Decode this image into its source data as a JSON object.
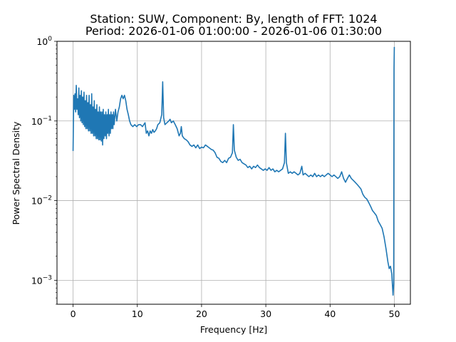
{
  "chart_data": {
    "type": "line",
    "title_lines": [
      "Station: SUW, Component: By, length of FFT: 1024",
      "Period: 2026-01-06 01:00:00 - 2026-01-06 01:30:00"
    ],
    "xlabel": "Frequency [Hz]",
    "ylabel": "Power Spectral Density",
    "xlim": [
      -2.5,
      52.5
    ],
    "ylim": [
      0.0005,
      1
    ],
    "yscale": "log",
    "grid": true,
    "line_color": "#1f77b4",
    "x_ticks": [
      0,
      10,
      20,
      30,
      40,
      50
    ],
    "x_tick_labels": [
      "0",
      "10",
      "20",
      "30",
      "40",
      "50"
    ],
    "y_ticks": [
      0.001,
      0.01,
      0.1,
      1
    ],
    "y_tick_labels": [
      {
        "base": "10",
        "exp": "−3"
      },
      {
        "base": "10",
        "exp": "−2"
      },
      {
        "base": "10",
        "exp": "−1"
      },
      {
        "base": "10",
        "exp": "0"
      }
    ],
    "series": [
      {
        "points": [
          [
            0.0,
            0.042
          ],
          [
            0.05,
            0.09
          ],
          [
            0.1,
            0.21
          ],
          [
            0.2,
            0.14
          ],
          [
            0.3,
            0.22
          ],
          [
            0.4,
            0.13
          ],
          [
            0.5,
            0.28
          ],
          [
            0.6,
            0.14
          ],
          [
            0.7,
            0.19
          ],
          [
            0.8,
            0.12
          ],
          [
            0.9,
            0.26
          ],
          [
            1.0,
            0.11
          ],
          [
            1.1,
            0.21
          ],
          [
            1.2,
            0.1
          ],
          [
            1.3,
            0.24
          ],
          [
            1.4,
            0.095
          ],
          [
            1.5,
            0.2
          ],
          [
            1.6,
            0.09
          ],
          [
            1.7,
            0.23
          ],
          [
            1.8,
            0.085
          ],
          [
            1.9,
            0.18
          ],
          [
            2.0,
            0.08
          ],
          [
            2.1,
            0.21
          ],
          [
            2.2,
            0.08
          ],
          [
            2.3,
            0.17
          ],
          [
            2.4,
            0.075
          ],
          [
            2.5,
            0.21
          ],
          [
            2.6,
            0.075
          ],
          [
            2.7,
            0.16
          ],
          [
            2.8,
            0.07
          ],
          [
            2.9,
            0.22
          ],
          [
            3.0,
            0.07
          ],
          [
            3.1,
            0.15
          ],
          [
            3.2,
            0.065
          ],
          [
            3.3,
            0.18
          ],
          [
            3.4,
            0.065
          ],
          [
            3.5,
            0.14
          ],
          [
            3.6,
            0.06
          ],
          [
            3.7,
            0.16
          ],
          [
            3.8,
            0.06
          ],
          [
            3.9,
            0.13
          ],
          [
            4.0,
            0.058
          ],
          [
            4.1,
            0.15
          ],
          [
            4.2,
            0.058
          ],
          [
            4.3,
            0.13
          ],
          [
            4.4,
            0.056
          ],
          [
            4.5,
            0.13
          ],
          [
            4.6,
            0.05
          ],
          [
            4.7,
            0.14
          ],
          [
            4.8,
            0.06
          ],
          [
            4.9,
            0.12
          ],
          [
            5.0,
            0.065
          ],
          [
            5.1,
            0.13
          ],
          [
            5.2,
            0.06
          ],
          [
            5.3,
            0.12
          ],
          [
            5.4,
            0.07
          ],
          [
            5.5,
            0.14
          ],
          [
            5.6,
            0.065
          ],
          [
            5.7,
            0.12
          ],
          [
            5.8,
            0.07
          ],
          [
            5.9,
            0.13
          ],
          [
            6.0,
            0.08
          ],
          [
            6.1,
            0.12
          ],
          [
            6.2,
            0.08
          ],
          [
            6.3,
            0.13
          ],
          [
            6.4,
            0.09
          ],
          [
            6.6,
            0.14
          ],
          [
            6.8,
            0.1
          ],
          [
            7.0,
            0.13
          ],
          [
            7.2,
            0.15
          ],
          [
            7.4,
            0.19
          ],
          [
            7.6,
            0.21
          ],
          [
            7.8,
            0.19
          ],
          [
            8.0,
            0.21
          ],
          [
            8.2,
            0.18
          ],
          [
            8.4,
            0.14
          ],
          [
            8.6,
            0.12
          ],
          [
            8.8,
            0.1
          ],
          [
            9.0,
            0.09
          ],
          [
            9.3,
            0.085
          ],
          [
            9.6,
            0.09
          ],
          [
            9.9,
            0.085
          ],
          [
            10.2,
            0.09
          ],
          [
            10.5,
            0.09
          ],
          [
            10.8,
            0.085
          ],
          [
            11.0,
            0.09
          ],
          [
            11.2,
            0.095
          ],
          [
            11.4,
            0.07
          ],
          [
            11.6,
            0.075
          ],
          [
            11.8,
            0.065
          ],
          [
            12.0,
            0.075
          ],
          [
            12.2,
            0.07
          ],
          [
            12.4,
            0.078
          ],
          [
            12.6,
            0.072
          ],
          [
            12.8,
            0.075
          ],
          [
            13.0,
            0.08
          ],
          [
            13.2,
            0.09
          ],
          [
            13.5,
            0.095
          ],
          [
            13.8,
            0.12
          ],
          [
            13.95,
            0.31
          ],
          [
            14.1,
            0.11
          ],
          [
            14.3,
            0.09
          ],
          [
            14.6,
            0.095
          ],
          [
            14.9,
            0.1
          ],
          [
            15.1,
            0.105
          ],
          [
            15.3,
            0.095
          ],
          [
            15.6,
            0.1
          ],
          [
            15.9,
            0.09
          ],
          [
            16.2,
            0.08
          ],
          [
            16.5,
            0.065
          ],
          [
            16.7,
            0.07
          ],
          [
            16.85,
            0.085
          ],
          [
            17.0,
            0.065
          ],
          [
            17.3,
            0.06
          ],
          [
            17.6,
            0.058
          ],
          [
            17.9,
            0.055
          ],
          [
            18.2,
            0.05
          ],
          [
            18.5,
            0.048
          ],
          [
            18.8,
            0.05
          ],
          [
            19.1,
            0.046
          ],
          [
            19.4,
            0.05
          ],
          [
            19.7,
            0.045
          ],
          [
            20.0,
            0.047
          ],
          [
            20.3,
            0.046
          ],
          [
            20.6,
            0.05
          ],
          [
            20.9,
            0.048
          ],
          [
            21.2,
            0.046
          ],
          [
            21.5,
            0.044
          ],
          [
            21.8,
            0.043
          ],
          [
            22.1,
            0.04
          ],
          [
            22.4,
            0.035
          ],
          [
            22.7,
            0.034
          ],
          [
            23.0,
            0.031
          ],
          [
            23.3,
            0.03
          ],
          [
            23.6,
            0.032
          ],
          [
            23.9,
            0.03
          ],
          [
            24.2,
            0.034
          ],
          [
            24.5,
            0.035
          ],
          [
            24.8,
            0.04
          ],
          [
            24.95,
            0.09
          ],
          [
            25.1,
            0.043
          ],
          [
            25.4,
            0.035
          ],
          [
            25.7,
            0.032
          ],
          [
            26.0,
            0.033
          ],
          [
            26.3,
            0.03
          ],
          [
            26.6,
            0.029
          ],
          [
            26.9,
            0.028
          ],
          [
            27.2,
            0.026
          ],
          [
            27.5,
            0.027
          ],
          [
            27.8,
            0.025
          ],
          [
            28.1,
            0.027
          ],
          [
            28.4,
            0.026
          ],
          [
            28.7,
            0.028
          ],
          [
            29.0,
            0.026
          ],
          [
            29.3,
            0.025
          ],
          [
            29.6,
            0.024
          ],
          [
            29.9,
            0.025
          ],
          [
            30.2,
            0.024
          ],
          [
            30.5,
            0.026
          ],
          [
            30.8,
            0.024
          ],
          [
            31.1,
            0.025
          ],
          [
            31.4,
            0.023
          ],
          [
            31.7,
            0.024
          ],
          [
            32.0,
            0.023
          ],
          [
            32.3,
            0.024
          ],
          [
            32.6,
            0.025
          ],
          [
            32.9,
            0.03
          ],
          [
            33.05,
            0.07
          ],
          [
            33.2,
            0.03
          ],
          [
            33.5,
            0.022
          ],
          [
            33.8,
            0.023
          ],
          [
            34.1,
            0.022
          ],
          [
            34.4,
            0.023
          ],
          [
            34.7,
            0.022
          ],
          [
            35.0,
            0.021
          ],
          [
            35.3,
            0.022
          ],
          [
            35.6,
            0.027
          ],
          [
            35.8,
            0.021
          ],
          [
            36.1,
            0.022
          ],
          [
            36.4,
            0.021
          ],
          [
            36.7,
            0.02
          ],
          [
            37.0,
            0.021
          ],
          [
            37.3,
            0.02
          ],
          [
            37.6,
            0.022
          ],
          [
            37.9,
            0.02
          ],
          [
            38.2,
            0.021
          ],
          [
            38.5,
            0.02
          ],
          [
            38.8,
            0.021
          ],
          [
            39.1,
            0.02
          ],
          [
            39.4,
            0.021
          ],
          [
            39.7,
            0.022
          ],
          [
            40.0,
            0.021
          ],
          [
            40.3,
            0.02
          ],
          [
            40.6,
            0.021
          ],
          [
            40.9,
            0.02
          ],
          [
            41.2,
            0.019
          ],
          [
            41.5,
            0.02
          ],
          [
            41.8,
            0.023
          ],
          [
            42.1,
            0.019
          ],
          [
            42.4,
            0.017
          ],
          [
            42.7,
            0.019
          ],
          [
            43.0,
            0.021
          ],
          [
            43.3,
            0.019
          ],
          [
            43.6,
            0.018
          ],
          [
            43.9,
            0.017
          ],
          [
            44.2,
            0.016
          ],
          [
            44.5,
            0.015
          ],
          [
            44.8,
            0.014
          ],
          [
            45.1,
            0.012
          ],
          [
            45.4,
            0.011
          ],
          [
            45.7,
            0.0105
          ],
          [
            46.0,
            0.0095
          ],
          [
            46.3,
            0.0085
          ],
          [
            46.6,
            0.0075
          ],
          [
            46.9,
            0.007
          ],
          [
            47.2,
            0.0065
          ],
          [
            47.5,
            0.0055
          ],
          [
            47.8,
            0.005
          ],
          [
            48.1,
            0.0045
          ],
          [
            48.4,
            0.0035
          ],
          [
            48.7,
            0.0025
          ],
          [
            49.0,
            0.0017
          ],
          [
            49.2,
            0.0014
          ],
          [
            49.4,
            0.0015
          ],
          [
            49.6,
            0.0012
          ],
          [
            49.8,
            0.00065
          ],
          [
            49.9,
            0.0009
          ],
          [
            49.95,
            0.45
          ],
          [
            50.0,
            0.85
          ]
        ]
      }
    ]
  }
}
